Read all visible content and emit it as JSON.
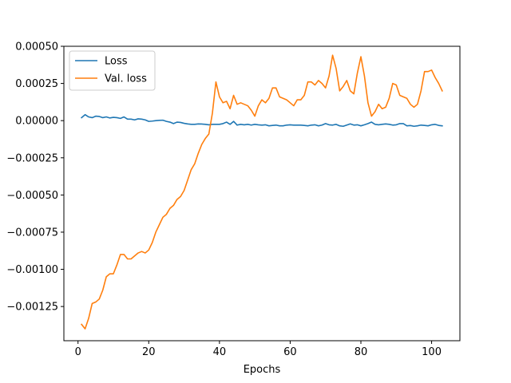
{
  "chart_data": {
    "type": "line",
    "title": "",
    "xlabel": "Epochs",
    "ylabel": "",
    "xlim": [
      -4,
      108
    ],
    "ylim": [
      -0.00148,
      0.0005
    ],
    "xticks": [
      0,
      20,
      40,
      60,
      80,
      100
    ],
    "xtick_labels": [
      "0",
      "20",
      "40",
      "60",
      "80",
      "100"
    ],
    "yticks": [
      0.0005,
      0.00025,
      0.0,
      -0.00025,
      -0.0005,
      -0.00075,
      -0.001,
      -0.00125
    ],
    "ytick_labels": [
      "0.00050",
      "0.00025",
      "0.00000",
      "−0.00025",
      "−0.00050",
      "−0.00075",
      "−0.00100",
      "−0.00125"
    ],
    "grid": false,
    "legend_position": "top-left",
    "series": [
      {
        "name": "Loss",
        "color": "#1f77b4",
        "x": [
          1,
          2,
          3,
          4,
          5,
          6,
          7,
          8,
          9,
          10,
          11,
          12,
          13,
          14,
          15,
          16,
          17,
          18,
          19,
          20,
          21,
          22,
          23,
          24,
          25,
          26,
          27,
          28,
          29,
          30,
          31,
          32,
          33,
          34,
          35,
          36,
          37,
          38,
          39,
          40,
          41,
          42,
          43,
          44,
          45,
          46,
          47,
          48,
          49,
          50,
          51,
          52,
          53,
          54,
          55,
          56,
          57,
          58,
          59,
          60,
          61,
          62,
          63,
          64,
          65,
          66,
          67,
          68,
          69,
          70,
          71,
          72,
          73,
          74,
          75,
          76,
          77,
          78,
          79,
          80,
          81,
          82,
          83,
          84,
          85,
          86,
          87,
          88,
          89,
          90,
          91,
          92,
          93,
          94,
          95,
          96,
          97,
          98,
          99,
          100,
          101,
          102,
          103
        ],
        "y": [
          2e-05,
          4e-05,
          2.5e-05,
          2e-05,
          3e-05,
          2.8e-05,
          2e-05,
          2.5e-05,
          1.8e-05,
          2.2e-05,
          2e-05,
          1.5e-05,
          2.5e-05,
          1e-05,
          1e-05,
          5e-06,
          1.2e-05,
          1e-05,
          5e-06,
          -5e-06,
          -3e-06,
          0.0,
          2e-06,
          3e-06,
          -5e-06,
          -1e-05,
          -2e-05,
          -1e-05,
          -1.2e-05,
          -1.8e-05,
          -2.2e-05,
          -2.5e-05,
          -2.5e-05,
          -2.2e-05,
          -2.3e-05,
          -2.5e-05,
          -2.8e-05,
          -2.5e-05,
          -2.5e-05,
          -2.5e-05,
          -2e-05,
          -1e-05,
          -2.5e-05,
          -5e-06,
          -3e-05,
          -2.5e-05,
          -2.8e-05,
          -2.5e-05,
          -3e-05,
          -2.5e-05,
          -2.8e-05,
          -3e-05,
          -2.8e-05,
          -3.5e-05,
          -3.2e-05,
          -3e-05,
          -3.5e-05,
          -3.5e-05,
          -3e-05,
          -2.8e-05,
          -3e-05,
          -3e-05,
          -3e-05,
          -3.2e-05,
          -3.5e-05,
          -3e-05,
          -2.8e-05,
          -3.5e-05,
          -3e-05,
          -2e-05,
          -2.8e-05,
          -3e-05,
          -2.5e-05,
          -3.5e-05,
          -3.8e-05,
          -3e-05,
          -2.2e-05,
          -3e-05,
          -2.8e-05,
          -3.5e-05,
          -2.8e-05,
          -2e-05,
          -1e-05,
          -2.5e-05,
          -2.8e-05,
          -2.5e-05,
          -2.2e-05,
          -2.5e-05,
          -3e-05,
          -2.8e-05,
          -2e-05,
          -2e-05,
          -3.5e-05,
          -3.3e-05,
          -3.8e-05,
          -3.5e-05,
          -3e-05,
          -3.2e-05,
          -3.5e-05,
          -2.8e-05,
          -2.5e-05,
          -3.2e-05,
          -3.5e-05
        ]
      },
      {
        "name": "Val. loss",
        "color": "#ff7f0e",
        "x": [
          1,
          2,
          3,
          4,
          5,
          6,
          7,
          8,
          9,
          10,
          11,
          12,
          13,
          14,
          15,
          16,
          17,
          18,
          19,
          20,
          21,
          22,
          23,
          24,
          25,
          26,
          27,
          28,
          29,
          30,
          31,
          32,
          33,
          34,
          35,
          36,
          37,
          38,
          39,
          40,
          41,
          42,
          43,
          44,
          45,
          46,
          47,
          48,
          49,
          50,
          51,
          52,
          53,
          54,
          55,
          56,
          57,
          58,
          59,
          60,
          61,
          62,
          63,
          64,
          65,
          66,
          67,
          68,
          69,
          70,
          71,
          72,
          73,
          74,
          75,
          76,
          77,
          78,
          79,
          80,
          81,
          82,
          83,
          84,
          85,
          86,
          87,
          88,
          89,
          90,
          91,
          92,
          93,
          94,
          95,
          96,
          97,
          98,
          99,
          100,
          101,
          102,
          103
        ],
        "y": [
          -0.00137,
          -0.0014,
          -0.00133,
          -0.00123,
          -0.00122,
          -0.0012,
          -0.00114,
          -0.00105,
          -0.00103,
          -0.00103,
          -0.00097,
          -0.0009,
          -0.0009,
          -0.00093,
          -0.00093,
          -0.00091,
          -0.00089,
          -0.00088,
          -0.00089,
          -0.00087,
          -0.00082,
          -0.00075,
          -0.0007,
          -0.00065,
          -0.00063,
          -0.00059,
          -0.00057,
          -0.00053,
          -0.00051,
          -0.00047,
          -0.0004,
          -0.00033,
          -0.00029,
          -0.00022,
          -0.00016,
          -0.00012,
          -9e-05,
          5e-05,
          0.00026,
          0.00016,
          0.00012,
          0.00013,
          8e-05,
          0.00017,
          0.00011,
          0.00012,
          0.00011,
          0.0001,
          7e-05,
          3e-05,
          0.0001,
          0.00014,
          0.00012,
          0.00015,
          0.00022,
          0.00022,
          0.00016,
          0.00015,
          0.00014,
          0.00012,
          0.0001,
          0.00014,
          0.00014,
          0.00017,
          0.00026,
          0.00026,
          0.00024,
          0.00027,
          0.00025,
          0.00022,
          0.0003,
          0.00044,
          0.00035,
          0.0002,
          0.00023,
          0.00027,
          0.0002,
          0.00018,
          0.00032,
          0.00043,
          0.0003,
          0.00012,
          3e-05,
          6e-05,
          0.00011,
          8e-05,
          9e-05,
          0.00015,
          0.00025,
          0.00024,
          0.00017,
          0.00016,
          0.00015,
          0.00011,
          9e-05,
          0.00011,
          0.0002,
          0.00033,
          0.00033,
          0.00034,
          0.00029,
          0.00025,
          0.0002
        ]
      }
    ]
  }
}
